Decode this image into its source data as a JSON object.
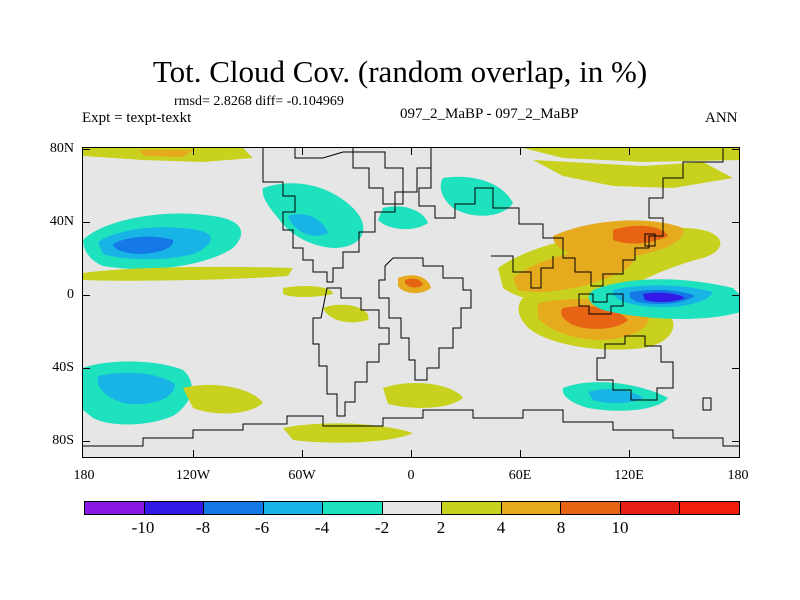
{
  "title": "Tot. Cloud Cov. (random overlap, in %)",
  "stats": "rmsd= 2.8268 diff= -0.104969",
  "experiment_name": "097_2_MaBP - 097_2_MaBP",
  "expt_label": "Expt = texpt-texkt",
  "season": "ANN",
  "lat_labels": [
    "80N",
    "40N",
    "0",
    "40S",
    "80S"
  ],
  "lon_labels": [
    "180",
    "120W",
    "60W",
    "0",
    "60E",
    "120E",
    "180"
  ],
  "colorbar": {
    "colors": [
      "#8a19e6",
      "#3219e6",
      "#1478e6",
      "#19b4e6",
      "#1ee1be",
      "#e6e6e6",
      "#c8d21e",
      "#e6aa1e",
      "#e66414",
      "#e61e14",
      "#f01e0a"
    ],
    "labels": [
      "-10",
      "-8",
      "-6",
      "-4",
      "-2",
      "2",
      "4",
      "8",
      "10"
    ]
  },
  "colors": {
    "background": "#e6e6e6",
    "cyan": "#1ee1be",
    "light_blue": "#19b4e6",
    "blue": "#1478e6",
    "purple": "#3219e6",
    "violet": "#8a19e6",
    "yellow_green": "#c8d21e",
    "orange": "#e6aa1e",
    "dark_orange": "#e66414",
    "red": "#e61e14"
  }
}
